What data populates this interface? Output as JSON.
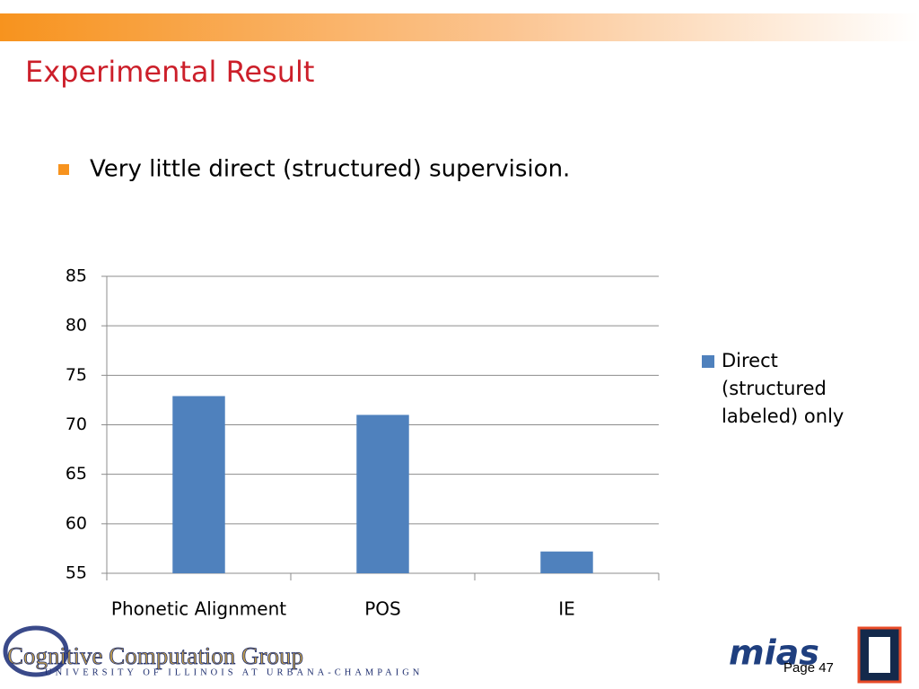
{
  "slide": {
    "title": "Experimental Result",
    "bullet": "Very little direct (structured) supervision.",
    "footer_group": "Cognitive Computation Group",
    "footer_university": "UNIVERSITY OF ILLINOIS AT URBANA-CHAMPAIGN",
    "footer_logo": "mias",
    "page": "Page 47"
  },
  "chart_data": {
    "type": "bar",
    "categories": [
      "Phonetic Alignment",
      "POS",
      "IE"
    ],
    "series": [
      {
        "name": "Direct (structured labeled) only",
        "color": "#4f81bd",
        "values": [
          72.9,
          71.0,
          57.2
        ]
      }
    ],
    "ylim": [
      55,
      85
    ],
    "yticks": [
      55,
      60,
      65,
      70,
      75,
      80,
      85
    ],
    "grid": true,
    "legend": "right"
  }
}
